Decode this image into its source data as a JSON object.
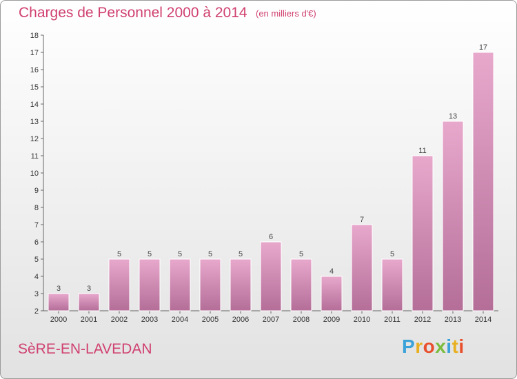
{
  "header": {
    "title": "Charges de Personnel 2000 à 2014",
    "subtitle": "(en milliers d'€)"
  },
  "footer": {
    "commune": "SèRE-EN-LAVEDAN",
    "brand": "Proxiti",
    "brand_colors": [
      "#3aa2d8",
      "#e8b021",
      "#e84f2c",
      "#7abc3d",
      "#3aa2d8",
      "#e8b021",
      "#e84f2c"
    ]
  },
  "colors": {
    "bar_top": "#e8a8cc",
    "bar_bottom": "#b46e98",
    "accent": "#d0416f"
  },
  "chart_data": {
    "type": "bar",
    "categories": [
      "2000",
      "2001",
      "2002",
      "2003",
      "2004",
      "2005",
      "2006",
      "2007",
      "2008",
      "2009",
      "2010",
      "2011",
      "2012",
      "2013",
      "2014"
    ],
    "values": [
      3,
      3,
      5,
      5,
      5,
      5,
      5,
      6,
      5,
      4,
      7,
      5,
      11,
      13,
      17
    ],
    "title": "Charges de Personnel 2000 à 2014",
    "subtitle": "(en milliers d'€)",
    "ylim": [
      2,
      18
    ],
    "yticks": [
      2,
      3,
      4,
      5,
      6,
      7,
      8,
      9,
      10,
      11,
      12,
      13,
      14,
      15,
      16,
      17,
      18
    ],
    "grid": false,
    "legend": "none"
  }
}
